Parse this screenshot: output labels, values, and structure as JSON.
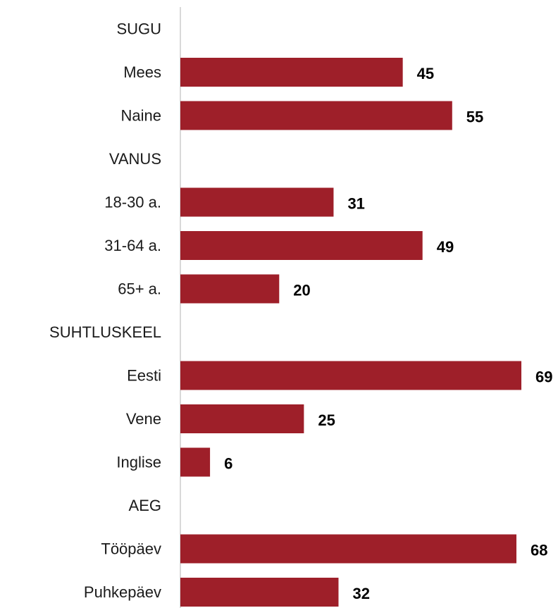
{
  "chart_data": {
    "type": "bar",
    "orientation": "horizontal",
    "categories": [
      "SUGU",
      "Mees",
      "Naine",
      "VANUS",
      "18-30 a.",
      "31-64 a.",
      "65+ a.",
      "SUHTLUSKEEL",
      "Eesti",
      "Vene",
      "Inglise",
      "AEG",
      "Tööpäev",
      "Puhkepäev"
    ],
    "values": [
      null,
      45,
      55,
      null,
      31,
      49,
      20,
      null,
      69,
      25,
      6,
      null,
      68,
      32
    ],
    "value_labels": [
      "",
      "45",
      "55",
      "",
      "31",
      "49",
      "20",
      "",
      "69",
      "25",
      "6",
      "",
      "68",
      "32"
    ],
    "xlim": [
      0,
      69
    ],
    "title": "",
    "xlabel": "",
    "ylabel": "",
    "grid": false,
    "legend": "none",
    "bar_color": "#9e1f29",
    "axis_color": "#d9d9d9"
  }
}
